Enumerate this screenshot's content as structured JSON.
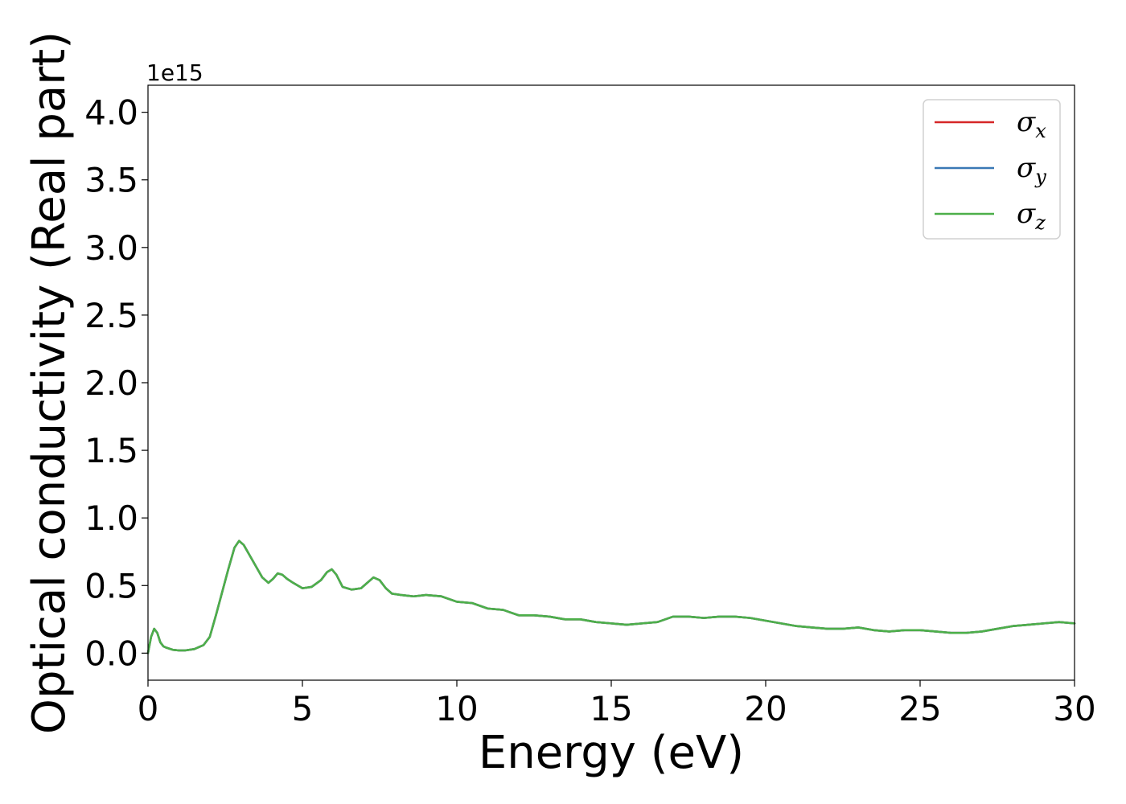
{
  "chart_data": {
    "type": "line",
    "xlabel": "Energy (eV)",
    "ylabel": "Optical conductivity (Real part)",
    "y_offset_label": "1e15",
    "xlim": [
      0,
      30
    ],
    "ylim": [
      -0.2,
      4.2
    ],
    "x_ticks": [
      0,
      5,
      10,
      15,
      20,
      25,
      30
    ],
    "x_tick_labels": [
      "0",
      "5",
      "10",
      "15",
      "20",
      "25",
      "30"
    ],
    "y_ticks": [
      0.0,
      0.5,
      1.0,
      1.5,
      2.0,
      2.5,
      3.0,
      3.5,
      4.0
    ],
    "y_tick_labels": [
      "0.0",
      "0.5",
      "1.0",
      "1.5",
      "2.0",
      "2.5",
      "3.0",
      "3.5",
      "4.0"
    ],
    "grid": false,
    "legend_position": "top-right",
    "x": [
      0,
      0.1,
      0.2,
      0.3,
      0.4,
      0.5,
      0.6,
      0.8,
      1.0,
      1.2,
      1.5,
      1.8,
      2.0,
      2.2,
      2.4,
      2.6,
      2.8,
      2.95,
      3.1,
      3.3,
      3.5,
      3.7,
      3.9,
      4.05,
      4.2,
      4.35,
      4.5,
      4.7,
      5.0,
      5.3,
      5.6,
      5.8,
      5.95,
      6.1,
      6.3,
      6.6,
      6.9,
      7.1,
      7.3,
      7.5,
      7.7,
      7.9,
      8.2,
      8.6,
      9.0,
      9.5,
      10.0,
      10.5,
      11.0,
      11.5,
      12.0,
      12.5,
      13.0,
      13.5,
      14.0,
      14.5,
      15.0,
      15.5,
      16.0,
      16.5,
      17.0,
      17.5,
      18.0,
      18.5,
      19.0,
      19.5,
      20.0,
      20.5,
      21.0,
      21.5,
      22.0,
      22.5,
      23.0,
      23.5,
      24.0,
      24.5,
      25.0,
      25.5,
      26.0,
      26.5,
      27.0,
      27.5,
      28.0,
      28.5,
      29.0,
      29.5,
      30.0
    ],
    "series": [
      {
        "name": "σx",
        "color": "#d62728",
        "values": [
          0.0,
          0.12,
          0.18,
          0.15,
          0.08,
          0.05,
          0.04,
          0.025,
          0.02,
          0.02,
          0.03,
          0.06,
          0.12,
          0.28,
          0.45,
          0.62,
          0.78,
          0.83,
          0.8,
          0.72,
          0.64,
          0.56,
          0.52,
          0.55,
          0.59,
          0.58,
          0.55,
          0.52,
          0.48,
          0.49,
          0.54,
          0.6,
          0.62,
          0.58,
          0.49,
          0.47,
          0.48,
          0.52,
          0.56,
          0.54,
          0.48,
          0.44,
          0.43,
          0.42,
          0.43,
          0.42,
          0.38,
          0.37,
          0.33,
          0.32,
          0.28,
          0.28,
          0.27,
          0.25,
          0.25,
          0.23,
          0.22,
          0.21,
          0.22,
          0.23,
          0.27,
          0.27,
          0.26,
          0.27,
          0.27,
          0.26,
          0.24,
          0.22,
          0.2,
          0.19,
          0.18,
          0.18,
          0.19,
          0.17,
          0.16,
          0.17,
          0.17,
          0.16,
          0.15,
          0.15,
          0.16,
          0.18,
          0.2,
          0.21,
          0.22,
          0.23,
          0.22
        ]
      },
      {
        "name": "σy",
        "color": "#3a78b5",
        "values": [
          0.0,
          0.12,
          0.18,
          0.15,
          0.08,
          0.05,
          0.04,
          0.025,
          0.02,
          0.02,
          0.03,
          0.06,
          0.12,
          0.28,
          0.45,
          0.62,
          0.78,
          0.83,
          0.8,
          0.72,
          0.64,
          0.56,
          0.52,
          0.55,
          0.59,
          0.58,
          0.55,
          0.52,
          0.48,
          0.49,
          0.54,
          0.6,
          0.62,
          0.58,
          0.49,
          0.47,
          0.48,
          0.52,
          0.56,
          0.54,
          0.48,
          0.44,
          0.43,
          0.42,
          0.43,
          0.42,
          0.38,
          0.37,
          0.33,
          0.32,
          0.28,
          0.28,
          0.27,
          0.25,
          0.25,
          0.23,
          0.22,
          0.21,
          0.22,
          0.23,
          0.27,
          0.27,
          0.26,
          0.27,
          0.27,
          0.26,
          0.24,
          0.22,
          0.2,
          0.19,
          0.18,
          0.18,
          0.19,
          0.17,
          0.16,
          0.17,
          0.17,
          0.16,
          0.15,
          0.15,
          0.16,
          0.18,
          0.2,
          0.21,
          0.22,
          0.23,
          0.22
        ]
      },
      {
        "name": "σz",
        "color": "#4daf4a",
        "values": [
          0.0,
          0.12,
          0.18,
          0.15,
          0.08,
          0.05,
          0.04,
          0.025,
          0.02,
          0.02,
          0.03,
          0.06,
          0.12,
          0.28,
          0.45,
          0.62,
          0.78,
          0.83,
          0.8,
          0.72,
          0.64,
          0.56,
          0.52,
          0.55,
          0.59,
          0.58,
          0.55,
          0.52,
          0.48,
          0.49,
          0.54,
          0.6,
          0.62,
          0.58,
          0.49,
          0.47,
          0.48,
          0.52,
          0.56,
          0.54,
          0.48,
          0.44,
          0.43,
          0.42,
          0.43,
          0.42,
          0.38,
          0.37,
          0.33,
          0.32,
          0.28,
          0.28,
          0.27,
          0.25,
          0.25,
          0.23,
          0.22,
          0.21,
          0.22,
          0.23,
          0.27,
          0.27,
          0.26,
          0.27,
          0.27,
          0.26,
          0.24,
          0.22,
          0.2,
          0.19,
          0.18,
          0.18,
          0.19,
          0.17,
          0.16,
          0.17,
          0.17,
          0.16,
          0.15,
          0.15,
          0.16,
          0.18,
          0.2,
          0.21,
          0.22,
          0.23,
          0.22
        ]
      }
    ],
    "legend": [
      {
        "symbol": "σ",
        "sub": "x",
        "color": "#d62728"
      },
      {
        "symbol": "σ",
        "sub": "y",
        "color": "#3a78b5"
      },
      {
        "symbol": "σ",
        "sub": "z",
        "color": "#4daf4a"
      }
    ]
  }
}
